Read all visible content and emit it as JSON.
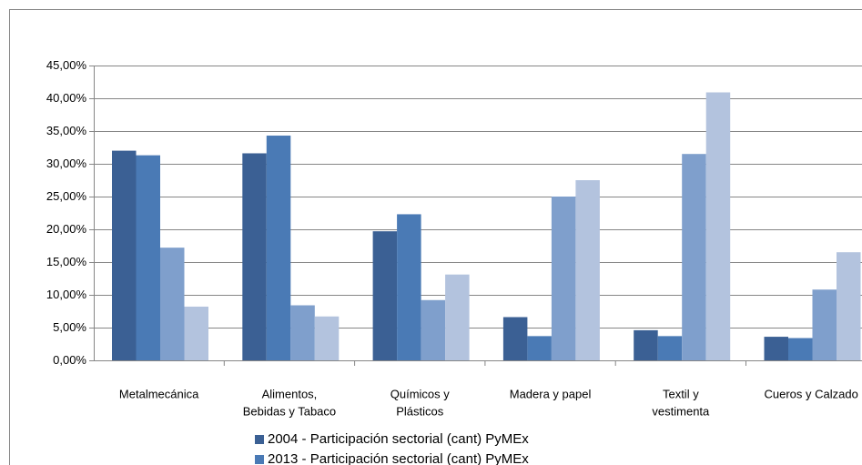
{
  "chart_data": {
    "type": "bar",
    "categories": [
      [
        "Metalmecánica"
      ],
      [
        "Alimentos,",
        "Bebidas y Tabaco"
      ],
      [
        "Químicos y",
        "Plásticos"
      ],
      [
        "Madera y papel"
      ],
      [
        "Textil y",
        "vestimenta"
      ],
      [
        "Cueros y Calzado"
      ]
    ],
    "series": [
      {
        "name": "2004 - Participación sectorial (cant) PyMEx",
        "color": "#3b6094",
        "values": [
          32.0,
          31.6,
          19.7,
          6.6,
          4.6,
          3.6
        ]
      },
      {
        "name": "2013 - Participación sectorial (cant) PyMEx",
        "color": "#4a7ab5",
        "values": [
          31.3,
          34.3,
          22.3,
          3.7,
          3.7,
          3.4
        ]
      },
      {
        "color": "#7f9fcc",
        "values": [
          17.2,
          8.4,
          9.2,
          25.0,
          31.5,
          10.8
        ]
      },
      {
        "color": "#b3c3de",
        "values": [
          8.2,
          6.7,
          13.1,
          27.5,
          40.9,
          16.5
        ]
      }
    ],
    "ylim": [
      0,
      45
    ],
    "yticks": [
      {
        "value": 0,
        "label": "0,00%"
      },
      {
        "value": 5,
        "label": "5,00%"
      },
      {
        "value": 10,
        "label": "10,00%"
      },
      {
        "value": 15,
        "label": "15,00%"
      },
      {
        "value": 20,
        "label": "20,00%"
      },
      {
        "value": 25,
        "label": "25,00%"
      },
      {
        "value": 30,
        "label": "30,00%"
      },
      {
        "value": 35,
        "label": "35,00%"
      },
      {
        "value": 40,
        "label": "40,00%"
      },
      {
        "value": 45,
        "label": "45,00%"
      }
    ],
    "grid": true
  }
}
